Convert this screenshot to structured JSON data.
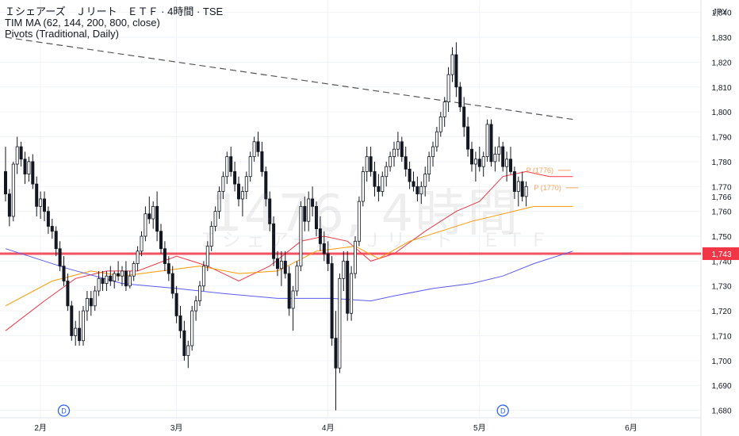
{
  "header": {
    "title": "Ｉシェアーズ　Ｊリート　ＥＴＦ · 4時間 · TSE",
    "indicator_1": "TIM MA (62, 144, 200, 800, close)",
    "indicator_2": "Pivots (Traditional, Daily)"
  },
  "watermark": {
    "symbol": "1476, 4時間",
    "name": "Ｉシェアーズ　Ｊリート　ＥＴＦ"
  },
  "colors": {
    "up_body": "#ffffff",
    "down_body": "#131722",
    "wick": "#131722",
    "ma_62": "#f23645",
    "ma_144": "#ff9800",
    "ma_200": "#5b5bf0",
    "horizontal_line": "#f23645",
    "trend_line": "#555555",
    "pivot": "#f7a35c",
    "event_marker": "#2962ff",
    "grid": "#f0f3fa"
  },
  "chart_data": {
    "type": "candlestick",
    "currency": "JPY",
    "y_ticks": [
      1680,
      1690,
      1700,
      1710,
      1720,
      1730,
      1740,
      1750,
      1760,
      1770,
      1780,
      1790,
      1800,
      1810,
      1820,
      1830,
      1840
    ],
    "ylim": [
      1677,
      1845
    ],
    "x_ticks": [
      {
        "label": "2月",
        "bar": 9
      },
      {
        "label": "3月",
        "bar": 44
      },
      {
        "label": "4月",
        "bar": 83
      },
      {
        "label": "5月",
        "bar": 122
      },
      {
        "label": "6月",
        "bar": 161
      }
    ],
    "price_labels": [
      {
        "value": 1766,
        "text": "1,766"
      },
      {
        "value": 1743,
        "text": "1,743",
        "highlight": true
      }
    ],
    "horizontal_line": 1743,
    "trend_line": {
      "start": {
        "bar": 0,
        "value": 1830
      },
      "end": {
        "bar": 146,
        "value": 1797
      }
    },
    "pivot_labels": [
      {
        "text": "P (1776)",
        "bar": 134,
        "value": 1776.5
      },
      {
        "text": "P (1770)",
        "bar": 136,
        "value": 1769.5
      }
    ],
    "event_markers": [
      {
        "label": "D",
        "bar": 15
      },
      {
        "label": "D",
        "bar": 128
      }
    ],
    "ohlc": [
      [
        1776,
        1786,
        1764,
        1767
      ],
      [
        1767,
        1769,
        1754,
        1758
      ],
      [
        1758,
        1780,
        1756,
        1779
      ],
      [
        1779,
        1790,
        1775,
        1786
      ],
      [
        1786,
        1788,
        1778,
        1781
      ],
      [
        1781,
        1784,
        1771,
        1775
      ],
      [
        1775,
        1782,
        1772,
        1780
      ],
      [
        1780,
        1783,
        1769,
        1771
      ],
      [
        1771,
        1774,
        1758,
        1762
      ],
      [
        1762,
        1768,
        1757,
        1765
      ],
      [
        1765,
        1768,
        1756,
        1760
      ],
      [
        1760,
        1762,
        1751,
        1754
      ],
      [
        1754,
        1757,
        1749,
        1752
      ],
      [
        1752,
        1754,
        1742,
        1745
      ],
      [
        1745,
        1748,
        1736,
        1738
      ],
      [
        1738,
        1742,
        1730,
        1732
      ],
      [
        1732,
        1735,
        1720,
        1722
      ],
      [
        1722,
        1724,
        1708,
        1710
      ],
      [
        1710,
        1716,
        1706,
        1713
      ],
      [
        1713,
        1720,
        1706,
        1708
      ],
      [
        1708,
        1722,
        1706,
        1720
      ],
      [
        1720,
        1728,
        1716,
        1725
      ],
      [
        1725,
        1728,
        1718,
        1722
      ],
      [
        1722,
        1730,
        1720,
        1728
      ],
      [
        1728,
        1736,
        1726,
        1733
      ],
      [
        1733,
        1736,
        1728,
        1731
      ],
      [
        1731,
        1736,
        1728,
        1734
      ],
      [
        1734,
        1738,
        1730,
        1732
      ],
      [
        1732,
        1736,
        1729,
        1735
      ],
      [
        1735,
        1740,
        1732,
        1734
      ],
      [
        1734,
        1738,
        1730,
        1736
      ],
      [
        1736,
        1740,
        1728,
        1730
      ],
      [
        1730,
        1736,
        1729,
        1734
      ],
      [
        1734,
        1740,
        1732,
        1739
      ],
      [
        1739,
        1746,
        1736,
        1744
      ],
      [
        1744,
        1752,
        1742,
        1750
      ],
      [
        1750,
        1762,
        1748,
        1759
      ],
      [
        1759,
        1766,
        1755,
        1757
      ],
      [
        1757,
        1764,
        1753,
        1762
      ],
      [
        1762,
        1768,
        1748,
        1752
      ],
      [
        1752,
        1755,
        1743,
        1745
      ],
      [
        1745,
        1748,
        1736,
        1739
      ],
      [
        1739,
        1742,
        1732,
        1735
      ],
      [
        1735,
        1738,
        1725,
        1727
      ],
      [
        1727,
        1730,
        1715,
        1718
      ],
      [
        1718,
        1722,
        1709,
        1712
      ],
      [
        1712,
        1716,
        1700,
        1702
      ],
      [
        1702,
        1708,
        1697,
        1706
      ],
      [
        1706,
        1722,
        1704,
        1720
      ],
      [
        1720,
        1726,
        1716,
        1724
      ],
      [
        1724,
        1732,
        1722,
        1730
      ],
      [
        1730,
        1740,
        1728,
        1738
      ],
      [
        1738,
        1748,
        1736,
        1746
      ],
      [
        1746,
        1756,
        1744,
        1754
      ],
      [
        1754,
        1762,
        1752,
        1760
      ],
      [
        1760,
        1770,
        1757,
        1768
      ],
      [
        1768,
        1776,
        1765,
        1774
      ],
      [
        1774,
        1784,
        1771,
        1782
      ],
      [
        1782,
        1786,
        1774,
        1776
      ],
      [
        1776,
        1780,
        1768,
        1771
      ],
      [
        1771,
        1774,
        1762,
        1765
      ],
      [
        1765,
        1770,
        1758,
        1768
      ],
      [
        1768,
        1776,
        1765,
        1774
      ],
      [
        1774,
        1784,
        1772,
        1782
      ],
      [
        1782,
        1790,
        1780,
        1788
      ],
      [
        1788,
        1792,
        1782,
        1784
      ],
      [
        1784,
        1788,
        1774,
        1776
      ],
      [
        1776,
        1778,
        1762,
        1765
      ],
      [
        1765,
        1768,
        1752,
        1755
      ],
      [
        1755,
        1758,
        1738,
        1741
      ],
      [
        1741,
        1744,
        1734,
        1737
      ],
      [
        1737,
        1744,
        1730,
        1740
      ],
      [
        1740,
        1744,
        1733,
        1735
      ],
      [
        1735,
        1738,
        1718,
        1721
      ],
      [
        1721,
        1730,
        1712,
        1728
      ],
      [
        1728,
        1740,
        1726,
        1738
      ],
      [
        1738,
        1764,
        1736,
        1762
      ],
      [
        1762,
        1766,
        1752,
        1756
      ],
      [
        1756,
        1768,
        1752,
        1765
      ],
      [
        1765,
        1770,
        1758,
        1762
      ],
      [
        1762,
        1764,
        1750,
        1753
      ],
      [
        1753,
        1758,
        1744,
        1747
      ],
      [
        1747,
        1752,
        1740,
        1743
      ],
      [
        1743,
        1748,
        1736,
        1739
      ],
      [
        1739,
        1742,
        1706,
        1709
      ],
      [
        1709,
        1720,
        1680,
        1697
      ],
      [
        1697,
        1735,
        1695,
        1733
      ],
      [
        1733,
        1744,
        1728,
        1740
      ],
      [
        1740,
        1744,
        1716,
        1719
      ],
      [
        1719,
        1738,
        1716,
        1735
      ],
      [
        1735,
        1750,
        1733,
        1748
      ],
      [
        1748,
        1766,
        1746,
        1764
      ],
      [
        1764,
        1778,
        1762,
        1776
      ],
      [
        1776,
        1786,
        1772,
        1782
      ],
      [
        1782,
        1786,
        1774,
        1776
      ],
      [
        1776,
        1780,
        1766,
        1770
      ],
      [
        1770,
        1775,
        1764,
        1768
      ],
      [
        1768,
        1776,
        1766,
        1774
      ],
      [
        1774,
        1780,
        1770,
        1778
      ],
      [
        1778,
        1784,
        1776,
        1782
      ],
      [
        1782,
        1788,
        1778,
        1785
      ],
      [
        1785,
        1792,
        1782,
        1788
      ],
      [
        1788,
        1790,
        1780,
        1782
      ],
      [
        1782,
        1786,
        1774,
        1777
      ],
      [
        1777,
        1780,
        1769,
        1772
      ],
      [
        1772,
        1776,
        1768,
        1770
      ],
      [
        1770,
        1774,
        1764,
        1767
      ],
      [
        1767,
        1772,
        1763,
        1770
      ],
      [
        1770,
        1778,
        1766,
        1775
      ],
      [
        1775,
        1784,
        1772,
        1782
      ],
      [
        1782,
        1788,
        1778,
        1786
      ],
      [
        1786,
        1794,
        1784,
        1792
      ],
      [
        1792,
        1800,
        1790,
        1798
      ],
      [
        1798,
        1806,
        1794,
        1804
      ],
      [
        1804,
        1818,
        1800,
        1815
      ],
      [
        1815,
        1826,
        1812,
        1823
      ],
      [
        1823,
        1828,
        1806,
        1810
      ],
      [
        1810,
        1812,
        1800,
        1802
      ],
      [
        1802,
        1806,
        1790,
        1794
      ],
      [
        1794,
        1798,
        1782,
        1785
      ],
      [
        1785,
        1788,
        1776,
        1779
      ],
      [
        1779,
        1784,
        1772,
        1781
      ],
      [
        1781,
        1786,
        1776,
        1778
      ],
      [
        1778,
        1784,
        1774,
        1782
      ],
      [
        1782,
        1797,
        1780,
        1795
      ],
      [
        1795,
        1797,
        1778,
        1780
      ],
      [
        1780,
        1786,
        1776,
        1783
      ],
      [
        1783,
        1790,
        1780,
        1786
      ],
      [
        1786,
        1788,
        1776,
        1778
      ],
      [
        1778,
        1784,
        1772,
        1781
      ],
      [
        1781,
        1786,
        1775,
        1776
      ],
      [
        1776,
        1778,
        1765,
        1768
      ],
      [
        1768,
        1774,
        1762,
        1772
      ],
      [
        1772,
        1776,
        1764,
        1766
      ],
      [
        1766,
        1772,
        1762,
        1770
      ]
    ],
    "series": [
      {
        "name": "MA 62",
        "values": [
          [
            0,
            1712
          ],
          [
            10,
            1724
          ],
          [
            18,
            1733
          ],
          [
            26,
            1736
          ],
          [
            34,
            1736
          ],
          [
            44,
            1742
          ],
          [
            52,
            1738
          ],
          [
            60,
            1732
          ],
          [
            68,
            1738
          ],
          [
            76,
            1748
          ],
          [
            82,
            1750
          ],
          [
            88,
            1748
          ],
          [
            94,
            1740
          ],
          [
            100,
            1743
          ],
          [
            108,
            1752
          ],
          [
            116,
            1760
          ],
          [
            122,
            1764
          ],
          [
            128,
            1774
          ],
          [
            134,
            1776
          ],
          [
            140,
            1774
          ],
          [
            146,
            1774
          ]
        ]
      },
      {
        "name": "MA 144",
        "values": [
          [
            0,
            1722
          ],
          [
            12,
            1732
          ],
          [
            22,
            1736
          ],
          [
            30,
            1734
          ],
          [
            40,
            1736
          ],
          [
            50,
            1738
          ],
          [
            60,
            1735
          ],
          [
            70,
            1736
          ],
          [
            80,
            1744
          ],
          [
            90,
            1746
          ],
          [
            96,
            1741
          ],
          [
            104,
            1748
          ],
          [
            112,
            1752
          ],
          [
            120,
            1756
          ],
          [
            128,
            1759
          ],
          [
            136,
            1762
          ],
          [
            146,
            1762
          ]
        ]
      },
      {
        "name": "MA 200",
        "values": [
          [
            0,
            1745
          ],
          [
            16,
            1737
          ],
          [
            30,
            1731
          ],
          [
            44,
            1729
          ],
          [
            56,
            1727
          ],
          [
            70,
            1725
          ],
          [
            84,
            1725
          ],
          [
            94,
            1724
          ],
          [
            100,
            1726
          ],
          [
            110,
            1729
          ],
          [
            120,
            1731
          ],
          [
            128,
            1734
          ],
          [
            136,
            1739
          ],
          [
            146,
            1744
          ]
        ]
      }
    ]
  }
}
